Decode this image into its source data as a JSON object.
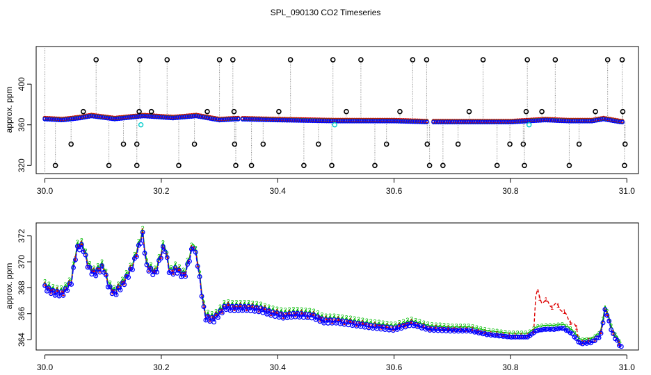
{
  "title": "SPL_090130  CO2 Timeseries",
  "colors": {
    "series1": "#dd0000",
    "series2": "#00bb00",
    "series3": "#0000ff",
    "outlier": "#000000",
    "flag": "#00cccc",
    "drop": "#888888"
  },
  "chart_data": [
    {
      "type": "scatter",
      "xlabel": "",
      "ylabel": "approx. ppm",
      "xlim": [
        29.985,
        31.02
      ],
      "ylim": [
        312,
        437
      ],
      "xticks": [
        30.0,
        30.2,
        30.4,
        30.6,
        30.8,
        31.0
      ],
      "xtick_labels": [
        "30.0",
        "30.2",
        "30.4",
        "30.6",
        "30.8",
        "31.0"
      ],
      "yticks": [
        320,
        360,
        400
      ],
      "ytick_labels": [
        "320",
        "360",
        "400"
      ],
      "baseline": {
        "x": [
          30.0,
          30.03,
          30.06,
          30.08,
          30.12,
          30.17,
          30.22,
          30.26,
          30.3,
          30.33,
          30.4,
          30.5,
          30.6,
          30.66,
          30.75,
          30.8,
          30.83,
          30.86,
          30.9,
          30.94,
          30.96,
          30.99
        ],
        "y": [
          366,
          365,
          367,
          369,
          366,
          369,
          367,
          369,
          365,
          366,
          365,
          364,
          364,
          363,
          363,
          363,
          364,
          365,
          364,
          364,
          366,
          363
        ]
      },
      "outliers": {
        "x": [
          30.088,
          30.163,
          30.21,
          30.3,
          30.323,
          30.422,
          30.495,
          30.543,
          30.632,
          30.656,
          30.753,
          30.829,
          30.877,
          30.967,
          30.992,
          30.018,
          30.11,
          30.158,
          30.23,
          30.328,
          30.355,
          30.445,
          30.493,
          30.567,
          30.661,
          30.684,
          30.777,
          30.824,
          30.901,
          30.996,
          30.045,
          30.135,
          30.158,
          30.257,
          30.326,
          30.375,
          30.47,
          30.587,
          30.657,
          30.71,
          30.799,
          30.822,
          30.918,
          30.997,
          30.066,
          30.183,
          30.279,
          30.325,
          30.402,
          30.518,
          30.61,
          30.729,
          30.827,
          30.854,
          30.946,
          30.993,
          30.162
        ],
        "y": [
          424,
          424,
          424,
          424,
          424,
          424,
          424,
          424,
          424,
          424,
          424,
          424,
          424,
          424,
          424,
          320,
          320,
          320,
          320,
          320,
          320,
          320,
          320,
          320,
          320,
          320,
          320,
          320,
          320,
          320,
          341,
          341,
          341,
          341,
          341,
          341,
          341,
          341,
          341,
          341,
          341,
          341,
          341,
          341,
          373,
          373,
          373,
          373,
          373,
          373,
          373,
          373,
          373,
          373,
          373,
          373,
          373
        ]
      },
      "flags": {
        "x": [
          30.165,
          30.498,
          30.832
        ],
        "y": [
          360,
          360,
          360
        ]
      }
    },
    {
      "type": "line",
      "xlabel": "",
      "ylabel": "approx. ppm",
      "xlim": [
        29.985,
        31.02
      ],
      "ylim": [
        363.2,
        373
      ],
      "xticks": [
        30.0,
        30.2,
        30.4,
        30.6,
        30.8,
        31.0
      ],
      "xtick_labels": [
        "30.0",
        "30.2",
        "30.4",
        "30.6",
        "30.8",
        "31.0"
      ],
      "yticks": [
        364,
        366,
        368,
        370,
        372
      ],
      "ytick_labels": [
        "364",
        "366",
        "368",
        "370",
        "372"
      ],
      "series": [
        {
          "name": "1",
          "marker": "1"
        },
        {
          "name": "2",
          "marker": "2"
        },
        {
          "name": "3",
          "marker": "3"
        }
      ],
      "x": [
        30.0,
        30.015,
        30.03,
        30.045,
        30.055,
        30.065,
        30.075,
        30.085,
        30.1,
        30.11,
        30.12,
        30.135,
        30.15,
        30.168,
        30.175,
        30.19,
        30.205,
        30.215,
        30.225,
        30.24,
        30.255,
        30.262,
        30.275,
        30.29,
        30.31,
        30.32,
        30.35,
        30.37,
        30.39,
        30.41,
        30.43,
        30.46,
        30.48,
        30.5,
        30.53,
        30.56,
        30.6,
        30.63,
        30.66,
        30.7,
        30.73,
        30.76,
        30.8,
        30.815,
        30.83,
        30.845,
        30.86,
        30.875,
        30.89,
        30.905,
        30.92,
        30.94,
        30.955,
        30.963,
        30.975,
        30.99
      ],
      "y3": [
        368,
        367.6,
        367.5,
        368.3,
        371,
        371.2,
        369.5,
        369,
        369.6,
        368,
        367.5,
        368.3,
        369.5,
        372.1,
        369.6,
        369,
        371.3,
        369,
        369.4,
        368.8,
        371.3,
        370,
        365.7,
        365.5,
        366.5,
        366.4,
        366.4,
        366.3,
        366,
        365.8,
        365.9,
        365.8,
        365.4,
        365.4,
        365.2,
        365,
        364.8,
        365.2,
        364.8,
        364.7,
        364.7,
        364.4,
        364.2,
        364.2,
        364.2,
        364.7,
        364.8,
        364.8,
        364.9,
        364.5,
        363.7,
        363.8,
        364.3,
        366.4,
        364.5,
        363.4
      ],
      "y2_offset": 0.3,
      "y1_extra": {
        "x": [
          30.84,
          30.845,
          30.852,
          30.86,
          30.87,
          30.88,
          30.89,
          30.9,
          30.915
        ],
        "y": [
          365.5,
          368.1,
          366.9,
          367,
          366.6,
          366.7,
          366.2,
          365.6,
          364.8
        ]
      }
    }
  ]
}
